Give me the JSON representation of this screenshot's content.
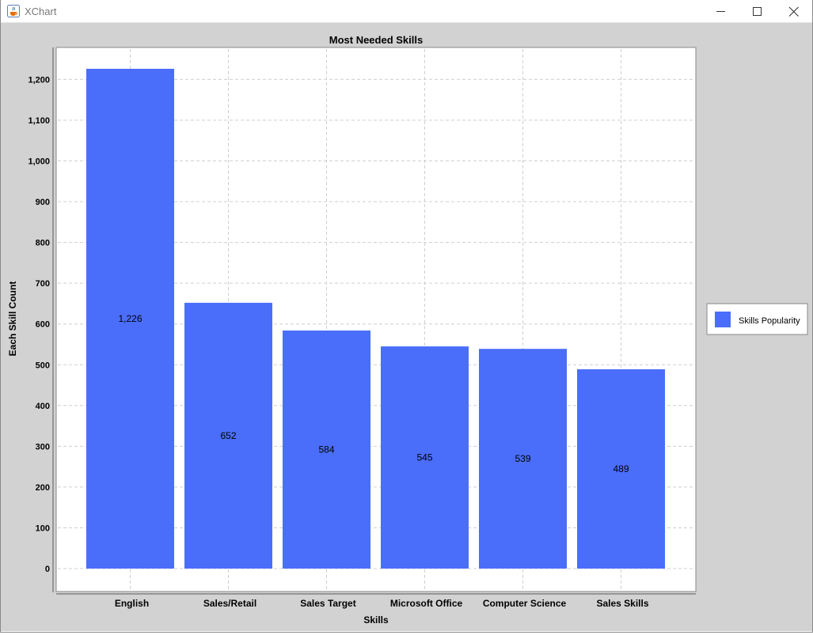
{
  "window": {
    "title": "XChart",
    "app_icon": "java-cup-icon",
    "controls": [
      "minimize-icon",
      "maximize-icon",
      "close-icon"
    ]
  },
  "chart_data": {
    "type": "bar",
    "title": "Most Needed Skills",
    "xlabel": "Skills",
    "ylabel": "Each Skill Count",
    "categories": [
      "English",
      "Sales/Retail",
      "Sales Target",
      "Microsoft Office",
      "Computer Science",
      "Sales Skills"
    ],
    "series": [
      {
        "name": "Skills Popularity",
        "values": [
          1226,
          652,
          584,
          545,
          539,
          489
        ],
        "color": "#4a6efa"
      }
    ],
    "data_labels": [
      "1,226",
      "652",
      "584",
      "545",
      "539",
      "489"
    ],
    "yticks": [
      0,
      100,
      200,
      300,
      400,
      500,
      600,
      700,
      800,
      900,
      1000,
      1100,
      1200
    ],
    "ytick_labels": [
      "0",
      "100",
      "200",
      "300",
      "400",
      "500",
      "600",
      "700",
      "800",
      "900",
      "1,000",
      "1,100",
      "1,200"
    ],
    "ylim": [
      0,
      1226
    ],
    "grid": true,
    "legend_position": "outside-right"
  }
}
